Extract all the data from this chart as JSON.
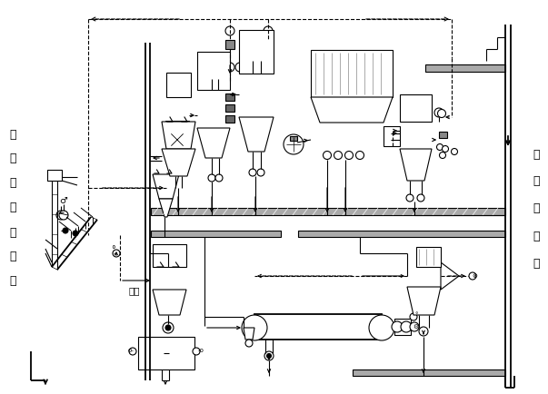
{
  "bg_color": "#ffffff",
  "lc": "#000000",
  "left_chars": [
    "来",
    "自",
    "水",
    "泥",
    "配",
    "料",
    "站"
  ],
  "right_chars": [
    "至",
    "水",
    "泥",
    "储",
    "库"
  ],
  "wai_pai": "外排",
  "figsize": [
    6.03,
    4.35
  ],
  "dpi": 100
}
